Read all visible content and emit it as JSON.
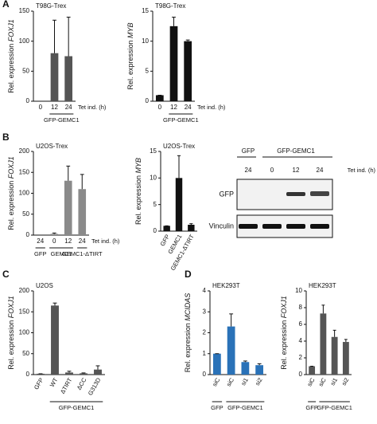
{
  "chart_data": [
    {
      "type": "bar",
      "panel": "A",
      "title": "T98G-Trex",
      "ylabel": {
        "text": "Rel. expression",
        "gene": "FOXJ1"
      },
      "categories": [
        "0",
        "12",
        "24"
      ],
      "xlabel": "Tet ind. (h)",
      "group_labels": [
        "GFP-GEMC1"
      ],
      "values": [
        0,
        80,
        75
      ],
      "errors": [
        0,
        55,
        65
      ],
      "color": "#555555",
      "ylim": [
        0,
        150
      ],
      "yticks": [
        0,
        50,
        100,
        150
      ]
    },
    {
      "type": "bar",
      "title": "T98G-Trex",
      "ylabel": {
        "text": "Rel. expression",
        "gene": "MYB"
      },
      "categories": [
        "0",
        "12",
        "24"
      ],
      "xlabel": "Tet ind. (h)",
      "group_labels": [
        "GFP-GEMC1"
      ],
      "values": [
        1,
        12.5,
        10
      ],
      "errors": [
        0,
        1.5,
        0.2
      ],
      "color": "#111111",
      "ylim": [
        0,
        15
      ],
      "yticks": [
        0,
        5,
        10,
        15
      ]
    },
    {
      "type": "bar",
      "panel": "B",
      "title": "U2OS-Trex",
      "ylabel": {
        "text": "Rel. expression",
        "gene": "FOXJ1"
      },
      "categories": [
        "24",
        "0",
        "12",
        "24"
      ],
      "xlabel": "Tet ind. (h)",
      "group_labels": [
        "GFP",
        "GEMC1",
        "GEMC1-ΔTIRT"
      ],
      "values": [
        0,
        3,
        130,
        110
      ],
      "errors": [
        0,
        2,
        35,
        35
      ],
      "color": "#8a8a8a",
      "ylim": [
        0,
        200
      ],
      "yticks": [
        0,
        50,
        100,
        150,
        200
      ]
    },
    {
      "type": "bar",
      "title": "U2OS-Trex",
      "ylabel": {
        "text": "Rel. expression",
        "gene": "MYB"
      },
      "categories": [
        "GFP",
        "GEMC1",
        "GEMC1-ΔTIRT"
      ],
      "values": [
        1,
        10,
        1.2
      ],
      "errors": [
        0,
        4.2,
        0.2
      ],
      "color": "#111111",
      "ylim": [
        0,
        15
      ],
      "yticks": [
        0,
        5,
        10,
        15
      ]
    },
    {
      "type": "bar",
      "panel": "C",
      "title": "U2OS",
      "ylabel": {
        "text": "Rel. expression",
        "gene": "FOXJ1"
      },
      "categories": [
        "GFP",
        "WT",
        "ΔTIRT",
        "ΔCC",
        "G313D"
      ],
      "group_labels": [
        "GFP-GEMC1"
      ],
      "values": [
        2,
        165,
        5,
        3,
        12
      ],
      "errors": [
        0,
        6,
        3,
        1,
        9
      ],
      "color": "#555555",
      "ylim": [
        0,
        200
      ],
      "yticks": [
        0,
        50,
        100,
        150,
        200
      ]
    },
    {
      "type": "bar",
      "panel": "D",
      "title": "HEK293T",
      "ylabel": {
        "text": "Rel. expression",
        "gene": "MCIDAS"
      },
      "categories": [
        "siC",
        "siC",
        "si1",
        "si2"
      ],
      "group_labels": [
        "GFP",
        "GFP-GEMC1"
      ],
      "values": [
        1,
        2.3,
        0.6,
        0.45
      ],
      "errors": [
        0,
        0.6,
        0.05,
        0.07
      ],
      "color": "#2a72b8",
      "ylim": [
        0,
        4
      ],
      "yticks": [
        0,
        1,
        2,
        3,
        4
      ]
    },
    {
      "type": "bar",
      "title": "HEK293T",
      "ylabel": {
        "text": "Rel. expression",
        "gene": "FOXJ1"
      },
      "categories": [
        "siC",
        "siC",
        "si1",
        "si2"
      ],
      "group_labels": [
        "GFP",
        "GFP-GEMC1"
      ],
      "values": [
        1,
        7.3,
        4.5,
        3.9
      ],
      "errors": [
        0,
        1,
        0.8,
        0.3
      ],
      "color": "#555555",
      "ylim": [
        0,
        10
      ],
      "yticks": [
        0,
        2,
        4,
        6,
        8,
        10
      ]
    }
  ],
  "blot": {
    "header": [
      "GFP",
      "GFP-GEMC1"
    ],
    "tet": [
      "24",
      "0",
      "12",
      "24"
    ],
    "tet_label": "Tet ind. (h)",
    "rows": [
      "GFP",
      "Vinculin"
    ]
  }
}
